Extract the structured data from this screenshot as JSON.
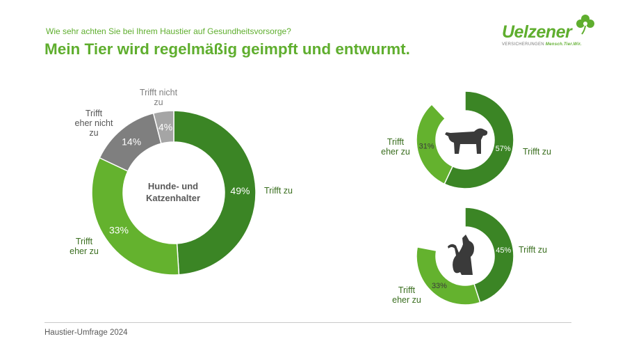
{
  "question": "Wie sehr achten Sie bei Ihrem Haustier auf Gesundheitsvorsorge?",
  "title": "Mein Tier wird regelmäßig geimpft und entwurmt.",
  "logo": {
    "name": "Uelzener",
    "sub_a": "VERSICHERUNGEN",
    "sub_b": "Mensch.Tier.Wir."
  },
  "footer": "Haustier-Umfrage 2024",
  "colors": {
    "dark_green": "#3b8525",
    "light_green": "#64b22e",
    "dark_grey": "#7f7f7f",
    "light_grey": "#a5a5a5",
    "accent": "#5fae2e"
  },
  "chart_data": [
    {
      "type": "donut",
      "center_label_line1": "Hunde- und",
      "center_label_line2": "Katzenhalter",
      "categories": [
        "Trifft zu",
        "Trifft eher zu",
        "Trifft eher nicht zu",
        "Trifft nicht zu"
      ],
      "values": [
        49,
        33,
        14,
        4
      ],
      "value_labels": [
        "49%",
        "33%",
        "14%",
        "4%"
      ]
    },
    {
      "type": "donut",
      "icon": "dog-icon",
      "categories": [
        "Trifft zu",
        "Trifft eher zu"
      ],
      "values": [
        57,
        31
      ],
      "value_labels": [
        "57%",
        "31%"
      ]
    },
    {
      "type": "donut",
      "icon": "cat-icon",
      "categories": [
        "Trifft zu",
        "Trifft eher zu"
      ],
      "values": [
        45,
        33
      ],
      "value_labels": [
        "45%",
        "33%"
      ]
    }
  ]
}
